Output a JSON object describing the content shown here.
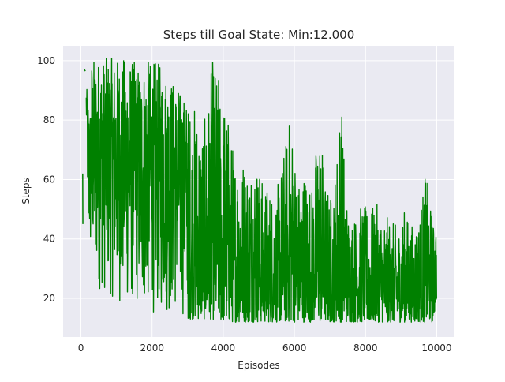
{
  "figure": {
    "title": "Steps till Goal State: Min:12.000"
  },
  "chart_data": {
    "type": "line",
    "title": "Steps till Goal State: Min:12.000",
    "xlabel": "Episodes",
    "ylabel": "Steps",
    "xlim": [
      -500,
      10500
    ],
    "ylim": [
      7,
      105
    ],
    "xticks": [
      0,
      2000,
      4000,
      6000,
      8000,
      10000
    ],
    "xtick_labels": [
      "0",
      "2000",
      "4000",
      "6000",
      "8000",
      "10000"
    ],
    "yticks": [
      20,
      40,
      60,
      80,
      100
    ],
    "ytick_labels": [
      "20",
      "40",
      "60",
      "80",
      "100"
    ],
    "grid": true,
    "legend": "none",
    "colors": {
      "series": "#008000",
      "background": "#eaeaf2",
      "grid": "#ffffff"
    },
    "series": [
      {
        "name": "",
        "note_values": "approximate envelope sampled from plot",
        "x": [
          50,
          60,
          100,
          150,
          200,
          250,
          300,
          400,
          500,
          700,
          900,
          1100,
          1300,
          1500,
          1700,
          1900,
          2100,
          2300,
          2500,
          2700,
          2900,
          3100,
          3300,
          3500,
          3700,
          3900,
          4100,
          4300,
          4500,
          4700,
          4900,
          5100,
          5300,
          5500,
          5700,
          5900,
          6100,
          6300,
          6500,
          6700,
          6900,
          7100,
          7300,
          7500,
          7700,
          7900,
          8100,
          8300,
          8500,
          8700,
          8900,
          9100,
          9300,
          9500,
          9700,
          9900,
          10000
        ],
        "y_max": [
          62,
          45,
          97,
          90,
          91,
          82,
          101,
          101,
          101,
          101,
          101,
          101,
          101,
          100,
          98,
          100,
          100,
          98,
          95,
          92,
          88,
          86,
          85,
          80,
          101,
          95,
          85,
          70,
          70,
          66,
          70,
          60,
          58,
          56,
          70,
          84,
          60,
          65,
          58,
          82,
          58,
          54,
          91,
          50,
          48,
          52,
          50,
          52,
          48,
          47,
          44,
          50,
          45,
          48,
          63,
          45,
          50
        ],
        "y_min": [
          62,
          45,
          97,
          81,
          38,
          30,
          28,
          24,
          22,
          20,
          19,
          17,
          16,
          15,
          14,
          14,
          14,
          13,
          13,
          13,
          13,
          13,
          13,
          13,
          13,
          12,
          12,
          12,
          12,
          12,
          12,
          12,
          12,
          12,
          12,
          12,
          12,
          12,
          12,
          12,
          12,
          12,
          12,
          12,
          12,
          12,
          12,
          12,
          12,
          12,
          12,
          12,
          12,
          12,
          12,
          12,
          20
        ]
      }
    ]
  }
}
